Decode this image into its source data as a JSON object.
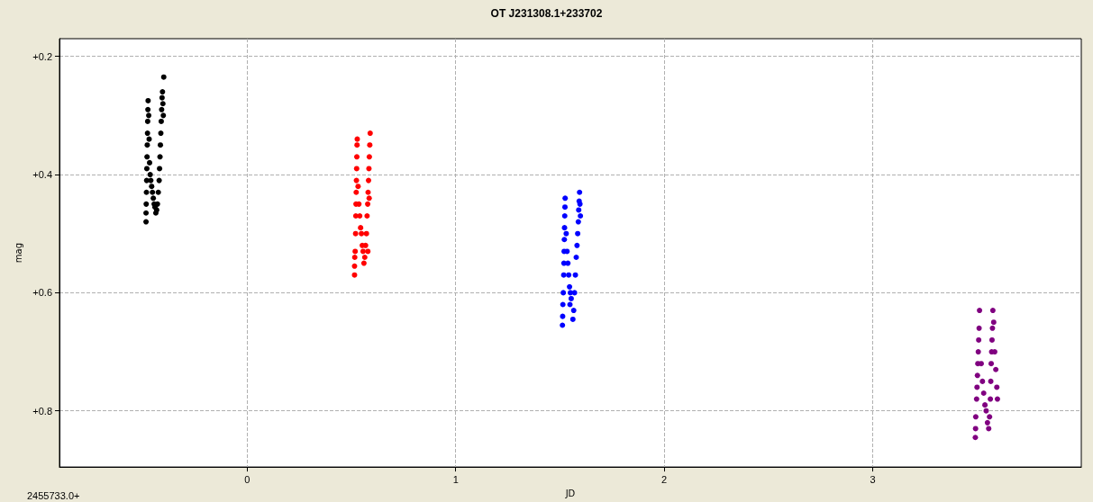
{
  "chart_data": {
    "type": "scatter",
    "title": "OT J231308.1+233702",
    "xlabel": "JD",
    "ylabel": "mag",
    "annotations": [
      "2455733.0+"
    ],
    "xlim": [
      -0.9,
      4.0
    ],
    "xticks": [
      0,
      1,
      2,
      3
    ],
    "ylim": [
      0.895,
      0.17
    ],
    "yticks": [
      {
        "value": 0.2,
        "label": "+0.2"
      },
      {
        "value": 0.4,
        "label": "+0.4"
      },
      {
        "value": 0.6,
        "label": "+0.6"
      },
      {
        "value": 0.8,
        "label": "+0.8"
      }
    ],
    "grid": true,
    "marker": "circle",
    "series": [
      {
        "color": "#000000",
        "x": [
          -0.485,
          -0.485,
          -0.484,
          -0.483,
          -0.482,
          -0.481,
          -0.48,
          -0.479,
          -0.478,
          -0.477,
          -0.476,
          -0.475,
          -0.472,
          -0.47,
          -0.468,
          -0.465,
          -0.462,
          -0.458,
          -0.454,
          -0.45,
          -0.446,
          -0.442,
          -0.438,
          -0.434,
          -0.43,
          -0.426,
          -0.422,
          -0.42,
          -0.418,
          -0.416,
          -0.414,
          -0.412,
          -0.41,
          -0.408,
          -0.406,
          -0.404,
          -0.402,
          -0.4
        ],
        "values": [
          0.48,
          0.465,
          0.45,
          0.43,
          0.41,
          0.39,
          0.37,
          0.35,
          0.33,
          0.31,
          0.29,
          0.275,
          0.3,
          0.34,
          0.38,
          0.4,
          0.41,
          0.42,
          0.43,
          0.44,
          0.45,
          0.455,
          0.465,
          0.46,
          0.45,
          0.43,
          0.41,
          0.39,
          0.37,
          0.35,
          0.33,
          0.31,
          0.29,
          0.27,
          0.26,
          0.28,
          0.3,
          0.235
        ]
      },
      {
        "color": "#ff0000",
        "x": [
          0.515,
          0.515,
          0.516,
          0.518,
          0.52,
          0.521,
          0.522,
          0.523,
          0.524,
          0.525,
          0.526,
          0.527,
          0.528,
          0.532,
          0.536,
          0.54,
          0.544,
          0.548,
          0.552,
          0.556,
          0.56,
          0.564,
          0.568,
          0.572,
          0.575,
          0.578,
          0.58,
          0.582,
          0.584,
          0.586,
          0.588,
          0.59,
          0.585,
          0.579
        ],
        "values": [
          0.57,
          0.555,
          0.54,
          0.53,
          0.5,
          0.47,
          0.45,
          0.43,
          0.41,
          0.39,
          0.37,
          0.35,
          0.34,
          0.42,
          0.45,
          0.47,
          0.49,
          0.5,
          0.52,
          0.53,
          0.55,
          0.54,
          0.52,
          0.5,
          0.47,
          0.45,
          0.43,
          0.41,
          0.39,
          0.37,
          0.35,
          0.33,
          0.44,
          0.53
        ]
      },
      {
        "color": "#0000ff",
        "x": [
          1.512,
          1.513,
          1.514,
          1.516,
          1.518,
          1.519,
          1.52,
          1.521,
          1.522,
          1.523,
          1.524,
          1.525,
          1.53,
          1.534,
          1.538,
          1.542,
          1.546,
          1.55,
          1.554,
          1.548,
          1.562,
          1.566,
          1.57,
          1.574,
          1.578,
          1.582,
          1.585,
          1.588,
          1.59,
          1.592,
          1.594,
          1.596,
          1.598
        ],
        "values": [
          0.655,
          0.64,
          0.62,
          0.6,
          0.57,
          0.55,
          0.53,
          0.51,
          0.49,
          0.47,
          0.455,
          0.44,
          0.5,
          0.53,
          0.55,
          0.57,
          0.59,
          0.6,
          0.61,
          0.62,
          0.645,
          0.63,
          0.6,
          0.57,
          0.54,
          0.52,
          0.5,
          0.48,
          0.46,
          0.445,
          0.43,
          0.45,
          0.47
        ]
      },
      {
        "color": "#800080",
        "x": [
          3.492,
          3.493,
          3.494,
          3.498,
          3.5,
          3.502,
          3.504,
          3.506,
          3.508,
          3.51,
          3.512,
          3.52,
          3.526,
          3.532,
          3.538,
          3.544,
          3.55,
          3.556,
          3.56,
          3.564,
          3.566,
          3.568,
          3.57,
          3.572,
          3.574,
          3.576,
          3.58,
          3.585,
          3.59,
          3.595,
          3.598
        ],
        "values": [
          0.845,
          0.83,
          0.81,
          0.78,
          0.76,
          0.74,
          0.72,
          0.7,
          0.68,
          0.66,
          0.63,
          0.72,
          0.75,
          0.77,
          0.79,
          0.8,
          0.82,
          0.83,
          0.81,
          0.78,
          0.75,
          0.72,
          0.7,
          0.68,
          0.66,
          0.63,
          0.65,
          0.7,
          0.73,
          0.76,
          0.78
        ]
      }
    ]
  }
}
